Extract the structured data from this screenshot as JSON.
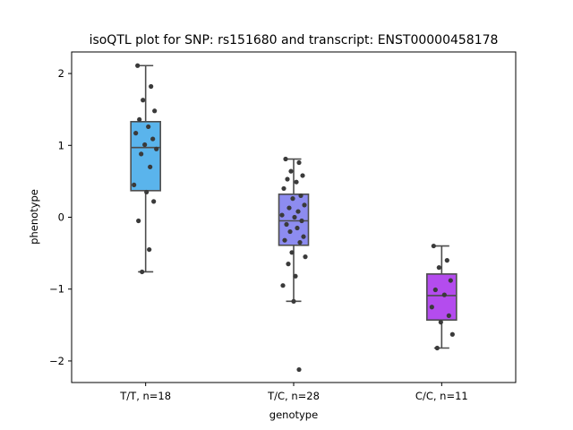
{
  "chart_data": {
    "type": "box",
    "title": "isoQTL plot for SNP: rs151680 and transcript: ENST00000458178",
    "xlabel": "genotype",
    "ylabel": "phenotype",
    "ylim": [
      -2.3,
      2.3
    ],
    "yticks": [
      -2,
      -1,
      0,
      1,
      2
    ],
    "grid": false,
    "categories": [
      "T/T, n=18",
      "T/C, n=28",
      "C/C, n=11"
    ],
    "boxes": [
      {
        "category": "T/T, n=18",
        "color": "#5ab4ec",
        "whisker_low": -0.76,
        "q1": 0.37,
        "median": 0.97,
        "q3": 1.33,
        "whisker_high": 2.11,
        "points": [
          2.11,
          1.82,
          1.63,
          1.48,
          1.36,
          1.26,
          1.17,
          1.09,
          1.01,
          0.95,
          0.88,
          0.7,
          0.45,
          0.35,
          0.22,
          -0.05,
          -0.45,
          -0.76
        ]
      },
      {
        "category": "T/C, n=28",
        "color": "#8d8cf0",
        "whisker_low": -1.17,
        "q1": -0.39,
        "median": -0.05,
        "q3": 0.32,
        "whisker_high": 0.81,
        "points": [
          0.81,
          0.76,
          0.64,
          0.58,
          0.53,
          0.49,
          0.4,
          0.3,
          0.26,
          0.17,
          0.13,
          0.08,
          0.03,
          0.0,
          -0.05,
          -0.1,
          -0.15,
          -0.2,
          -0.27,
          -0.32,
          -0.35,
          -0.49,
          -0.55,
          -0.65,
          -0.82,
          -0.95,
          -1.17,
          -2.12
        ]
      },
      {
        "category": "C/C, n=11",
        "color": "#b44cee",
        "whisker_low": -1.82,
        "q1": -1.43,
        "median": -1.09,
        "q3": -0.79,
        "whisker_high": -0.4,
        "points": [
          -0.4,
          -0.6,
          -0.7,
          -0.88,
          -1.01,
          -1.08,
          -1.25,
          -1.37,
          -1.46,
          -1.63,
          -1.82
        ]
      }
    ]
  }
}
